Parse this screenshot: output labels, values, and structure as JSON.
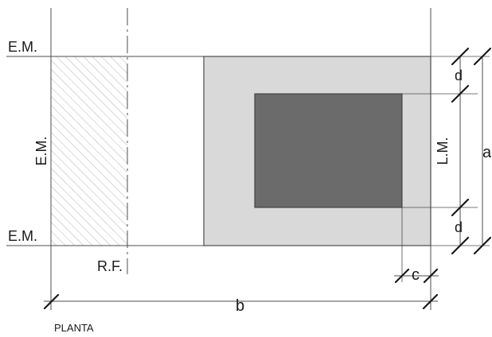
{
  "labels": {
    "em_top": "E.M.",
    "em_bottom": "E.M.",
    "em_vertical": "E.M.",
    "lm_vertical": "L.M.",
    "rf": "R.F.",
    "dim_a": "a",
    "dim_b": "b",
    "dim_c": "c",
    "dim_d_top": "d",
    "dim_d_bottom": "d",
    "view_title": "PLANTA"
  },
  "colors": {
    "line": "#4d4d4d",
    "tick": "#1a1a1a",
    "hatch": "#b3b3b3",
    "footing_fill": "#d9d9d9",
    "column_fill": "#6b6b6b",
    "background": "#ffffff"
  }
}
